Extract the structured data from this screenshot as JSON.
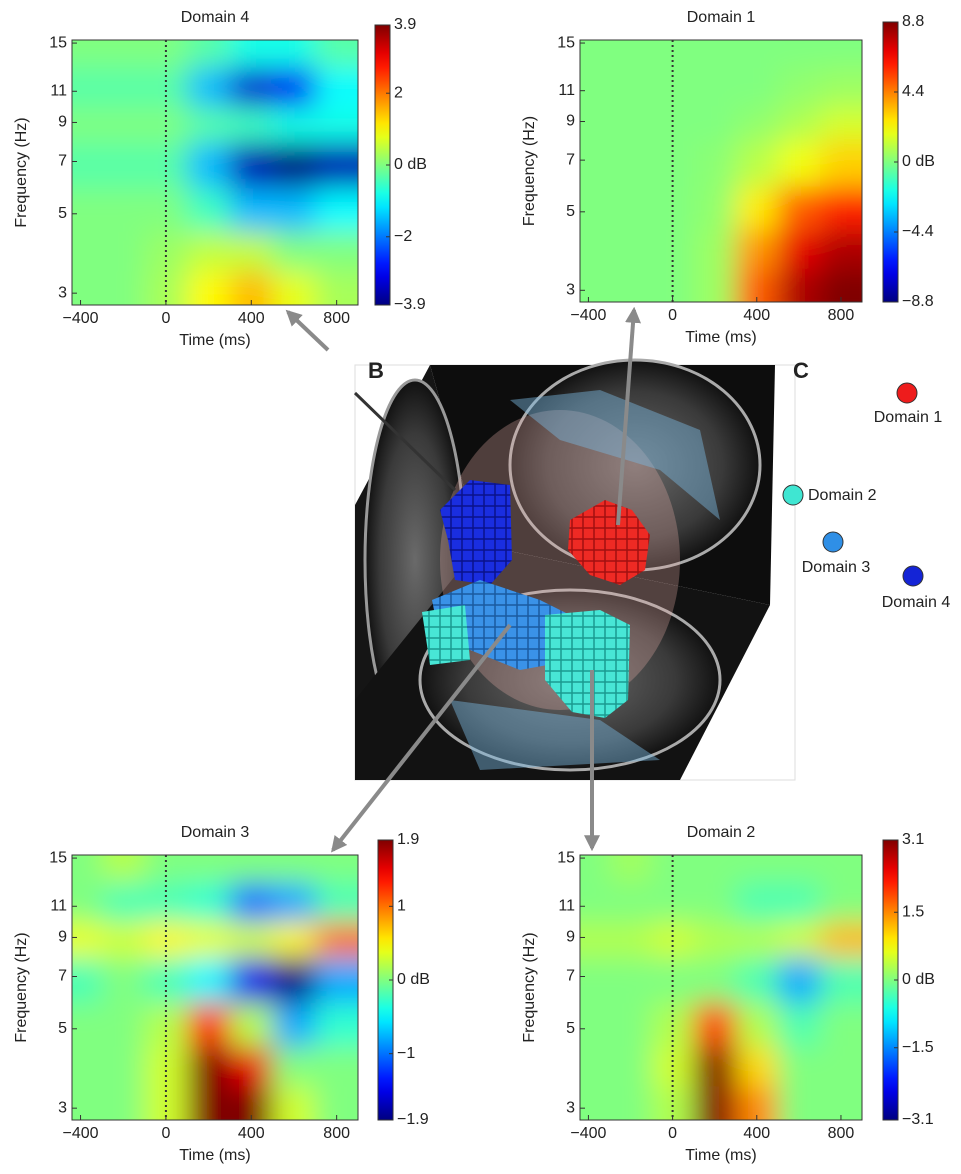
{
  "chart_data": [
    {
      "type": "heatmap",
      "title": "Domain 4",
      "xlabel": "Time (ms)",
      "ylabel": "Frequency (Hz)",
      "x": [
        -400,
        -200,
        0,
        200,
        400,
        600,
        800
      ],
      "y": [
        3,
        4,
        5,
        7,
        9,
        11,
        15
      ],
      "z": [
        [
          0,
          0,
          0.3,
          1,
          1.5,
          0.8,
          0.3
        ],
        [
          0,
          0,
          0.2,
          0.5,
          0.5,
          0,
          0
        ],
        [
          0,
          0,
          0,
          -0.5,
          -1.5,
          -1.5,
          -1
        ],
        [
          -0.3,
          -0.3,
          -0.3,
          -1.5,
          -3.5,
          -3.9,
          -3.5
        ],
        [
          0,
          0,
          0,
          -0.3,
          -0.5,
          -0.8,
          -0.8
        ],
        [
          -0.3,
          -0.3,
          -0.3,
          -1.5,
          -3.3,
          -3,
          -1
        ],
        [
          0,
          0,
          0,
          -0.3,
          -0.8,
          -0.8,
          -0.3
        ]
      ],
      "xlim": [
        -440,
        900
      ],
      "ylim": [
        2.78,
        15.3
      ],
      "yscale": "log",
      "vline": 0,
      "xticks": [
        {
          "value": -400,
          "label": "−400"
        },
        0,
        400,
        800
      ],
      "yticks": [
        3,
        5,
        7,
        9,
        11,
        15
      ],
      "colormap": "jet",
      "clim": [
        -3.9,
        3.9
      ],
      "cticks": [
        {
          "value": 3.9,
          "label": "3.9"
        },
        2,
        {
          "value": 0,
          "label": "0  dB"
        },
        {
          "value": -2,
          "label": "−2"
        },
        {
          "value": -3.9,
          "label": "−3.9"
        }
      ]
    },
    {
      "type": "heatmap",
      "title": "Domain 1",
      "xlabel": "Time (ms)",
      "ylabel": "Frequency (Hz)",
      "x": [
        -400,
        -200,
        0,
        200,
        400,
        600,
        800
      ],
      "y": [
        3,
        4,
        5,
        7,
        9,
        11,
        15
      ],
      "z": [
        [
          0,
          0,
          0,
          0.5,
          5,
          8,
          8.8
        ],
        [
          0,
          0,
          0,
          0.5,
          4,
          7,
          8
        ],
        [
          0,
          0,
          0,
          0.3,
          2.5,
          5,
          6
        ],
        [
          0,
          0,
          0,
          0.2,
          1,
          2,
          3
        ],
        [
          0,
          0,
          0,
          0,
          0.3,
          0.8,
          1.5
        ],
        [
          0,
          0,
          0,
          0,
          0,
          0.3,
          0.5
        ],
        [
          0,
          0,
          0,
          0,
          0,
          0,
          0
        ]
      ],
      "xlim": [
        -440,
        900
      ],
      "ylim": [
        2.78,
        15.3
      ],
      "yscale": "log",
      "vline": 0,
      "xticks": [
        {
          "value": -400,
          "label": "−400"
        },
        0,
        400,
        800
      ],
      "yticks": [
        3,
        5,
        7,
        9,
        11,
        15
      ],
      "colormap": "jet",
      "clim": [
        -8.8,
        8.8
      ],
      "cticks": [
        {
          "value": 8.8,
          "label": "8.8"
        },
        4.4,
        {
          "value": 0,
          "label": "0  dB"
        },
        {
          "value": -4.4,
          "label": "−4.4"
        },
        {
          "value": -8.8,
          "label": "−8.8"
        }
      ]
    },
    {
      "type": "heatmap",
      "title": "Domain 3",
      "xlabel": "Time (ms)",
      "ylabel": "Frequency (Hz)",
      "x": [
        -400,
        -200,
        0,
        200,
        400,
        600,
        800
      ],
      "y": [
        3,
        4,
        5,
        7,
        9,
        11,
        15
      ],
      "z": [
        [
          0,
          0,
          0.3,
          1.9,
          1.9,
          0.3,
          0
        ],
        [
          0,
          0,
          0.3,
          1.9,
          1.5,
          0,
          0
        ],
        [
          0,
          0,
          0.2,
          1.3,
          0.2,
          -0.8,
          -0.3
        ],
        [
          -0.2,
          0,
          -0.2,
          -0.5,
          -1.5,
          -1.9,
          -0.8
        ],
        [
          0.4,
          0.3,
          0.5,
          0.4,
          0.3,
          0.5,
          1
        ],
        [
          0,
          -0.2,
          -0.2,
          -0.3,
          -1,
          -0.8,
          -0.2
        ],
        [
          0,
          0.2,
          0,
          0,
          0,
          0,
          0
        ]
      ],
      "xlim": [
        -440,
        900
      ],
      "ylim": [
        2.78,
        15.3
      ],
      "yscale": "log",
      "vline": 0,
      "xticks": [
        {
          "value": -400,
          "label": "−400"
        },
        0,
        400,
        800
      ],
      "yticks": [
        3,
        5,
        7,
        9,
        11,
        15
      ],
      "colormap": "jet",
      "clim": [
        -1.9,
        1.9
      ],
      "cticks": [
        {
          "value": 1.9,
          "label": "1.9"
        },
        1,
        {
          "value": 0,
          "label": "0  dB"
        },
        {
          "value": -1,
          "label": "−1"
        },
        {
          "value": -1.9,
          "label": "−1.9"
        }
      ]
    },
    {
      "type": "heatmap",
      "title": "Domain 2",
      "xlabel": "Time (ms)",
      "ylabel": "Frequency (Hz)",
      "x": [
        -400,
        -200,
        0,
        200,
        400,
        600,
        800
      ],
      "y": [
        3,
        4,
        5,
        7,
        9,
        11,
        15
      ],
      "z": [
        [
          0,
          0,
          0.3,
          3.1,
          1.5,
          0,
          0
        ],
        [
          0,
          0,
          0.5,
          3.1,
          1,
          0,
          0
        ],
        [
          0,
          0,
          0.3,
          2,
          0.3,
          -0.3,
          0
        ],
        [
          0,
          0,
          0,
          0,
          -0.3,
          -1.3,
          -0.3
        ],
        [
          0.3,
          0.3,
          0.5,
          0.3,
          0.3,
          0.5,
          1.2
        ],
        [
          0,
          0,
          0,
          0,
          -0.3,
          -0.3,
          0
        ],
        [
          0,
          0.2,
          0,
          0,
          0,
          0,
          0
        ]
      ],
      "xlim": [
        -440,
        900
      ],
      "ylim": [
        2.78,
        15.3
      ],
      "yscale": "log",
      "vline": 0,
      "xticks": [
        {
          "value": -400,
          "label": "−400"
        },
        0,
        400,
        800
      ],
      "yticks": [
        3,
        5,
        7,
        9,
        11,
        15
      ],
      "colormap": "jet",
      "clim": [
        -3.1,
        3.1
      ],
      "cticks": [
        {
          "value": 3.1,
          "label": "3.1"
        },
        1.5,
        {
          "value": 0,
          "label": "0  dB"
        },
        {
          "value": -1.5,
          "label": "−1.5"
        },
        {
          "value": -3.1,
          "label": "−3.1"
        }
      ]
    }
  ],
  "figure": {
    "panel_labels": [
      "B",
      "C"
    ],
    "legend": [
      {
        "name": "Domain 1",
        "color": "#ee1c1c"
      },
      {
        "name": "Domain 2",
        "color": "#3fe6d2"
      },
      {
        "name": "Domain 3",
        "color": "#2f8fe6"
      },
      {
        "name": "Domain 4",
        "color": "#1424d6"
      }
    ]
  }
}
